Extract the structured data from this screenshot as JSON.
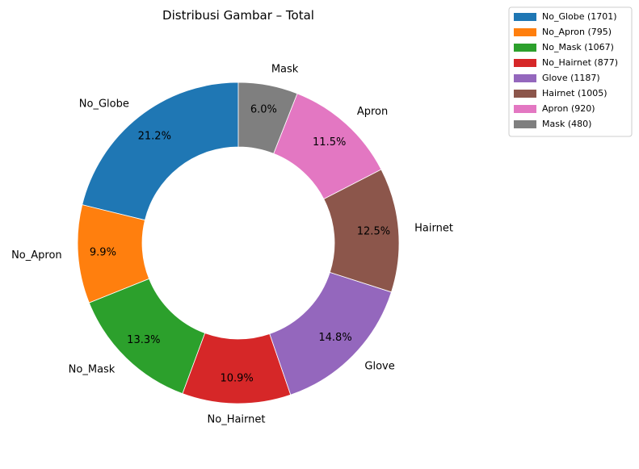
{
  "chart_data": {
    "type": "pie",
    "donut": true,
    "title": "Distribusi Gambar – Total",
    "start_angle_deg": 90,
    "direction": "counterclockwise",
    "legend_placement": "top-right outside",
    "slices": [
      {
        "label": "No_Globe",
        "value": 1701,
        "percent_label": "21.2%",
        "legend": "No_Globe (1701)",
        "color": "#1f77b4"
      },
      {
        "label": "No_Apron",
        "value": 795,
        "percent_label": "9.9%",
        "legend": "No_Apron (795)",
        "color": "#ff7f0e"
      },
      {
        "label": "No_Mask",
        "value": 1067,
        "percent_label": "13.3%",
        "legend": "No_Mask (1067)",
        "color": "#2ca02c"
      },
      {
        "label": "No_Hairnet",
        "value": 877,
        "percent_label": "10.9%",
        "legend": "No_Hairnet (877)",
        "color": "#d62728"
      },
      {
        "label": "Glove",
        "value": 1187,
        "percent_label": "14.8%",
        "legend": "Glove (1187)",
        "color": "#9467bd"
      },
      {
        "label": "Hairnet",
        "value": 1005,
        "percent_label": "12.5%",
        "legend": "Hairnet (1005)",
        "color": "#8c564b"
      },
      {
        "label": "Apron",
        "value": 920,
        "percent_label": "11.5%",
        "legend": "Apron (920)",
        "color": "#e377c2"
      },
      {
        "label": "Mask",
        "value": 480,
        "percent_label": "6.0%",
        "legend": "Mask (480)",
        "color": "#7f7f7f"
      }
    ]
  }
}
